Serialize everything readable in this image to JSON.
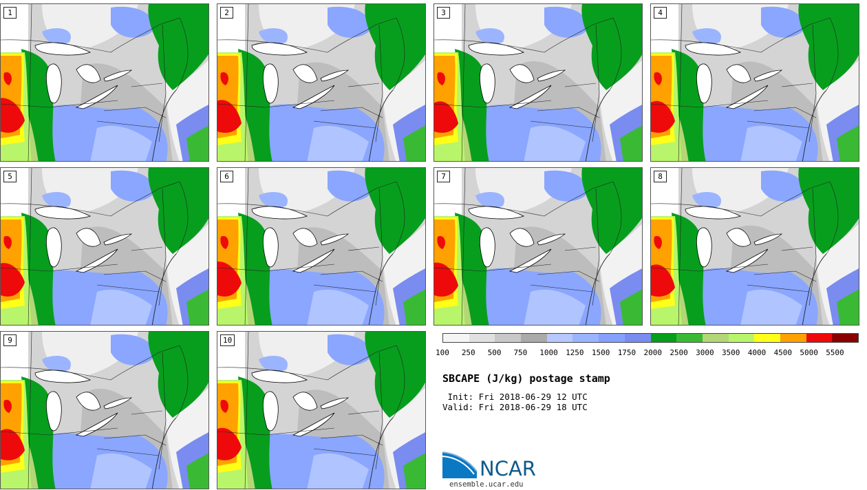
{
  "panels": [
    {
      "label": "1"
    },
    {
      "label": "2"
    },
    {
      "label": "3"
    },
    {
      "label": "4"
    },
    {
      "label": "5"
    },
    {
      "label": "6"
    },
    {
      "label": "7"
    },
    {
      "label": "8"
    },
    {
      "label": "9"
    },
    {
      "label": "10"
    }
  ],
  "colorbar": {
    "colors": [
      "#f5f5f5",
      "#e0e0e0",
      "#c8c8c8",
      "#aaaaaa",
      "#b6c8ff",
      "#9bb4ff",
      "#86a0ff",
      "#7a8cf0",
      "#069e1c",
      "#3aba34",
      "#b3d676",
      "#b9f56a",
      "#ffff18",
      "#ffa100",
      "#ee0a0a",
      "#8a0000"
    ],
    "tick_labels": [
      "100",
      "250",
      "500",
      "750",
      "1000",
      "1250",
      "1500",
      "1750",
      "2000",
      "2500",
      "3000",
      "3500",
      "4000",
      "4500",
      "5000",
      "5500"
    ]
  },
  "title": "SBCAPE (J/kg) postage stamp",
  "init_line": " Init: Fri 2018-06-29 12 UTC",
  "valid_line": "Valid: Fri 2018-06-29 18 UTC",
  "logo": {
    "text": "NCAR",
    "url": "ensemble.ucar.edu"
  }
}
